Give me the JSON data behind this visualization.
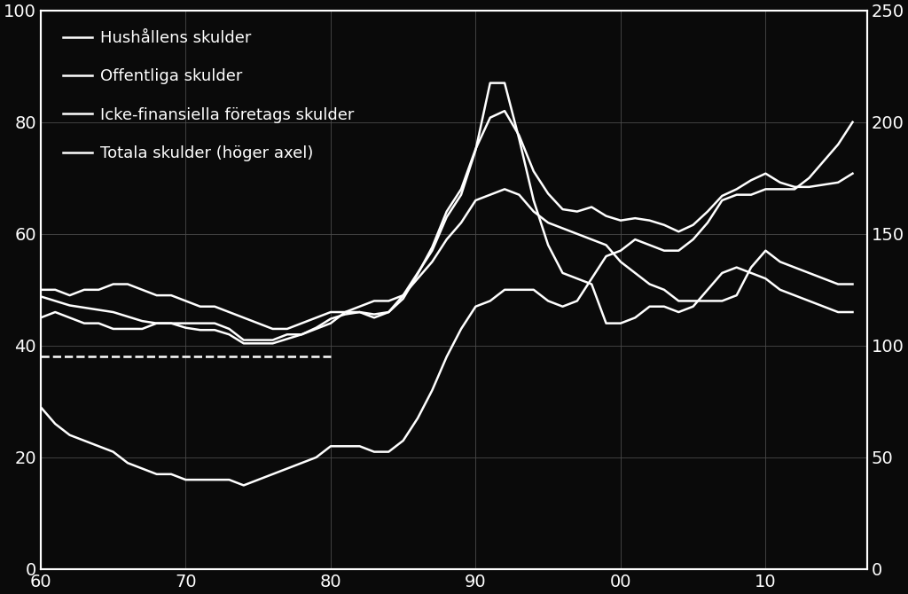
{
  "background_color": "#0a0a0a",
  "line_color": "#ffffff",
  "grid_color": "#4a4a4a",
  "text_color": "#ffffff",
  "xlim": [
    1960,
    2017
  ],
  "ylim_left": [
    0,
    100
  ],
  "ylim_right": [
    0,
    250
  ],
  "xticks": [
    1960,
    1970,
    1980,
    1990,
    2000,
    2010
  ],
  "xticklabels": [
    "60",
    "70",
    "80",
    "90",
    "00",
    "10"
  ],
  "yticks_left": [
    0,
    20,
    40,
    60,
    80,
    100
  ],
  "yticks_right": [
    0,
    50,
    100,
    150,
    200,
    250
  ],
  "legend_labels": [
    "Hushållens skulder",
    "Offentliga skulder",
    "Icke-finansiella företags skulder",
    "Totala skulder (höger axel)"
  ],
  "dashed_line_y": 38,
  "dashed_line_x_start": 1960,
  "dashed_line_x_end": 1980,
  "years": [
    1960,
    1961,
    1962,
    1963,
    1964,
    1965,
    1966,
    1967,
    1968,
    1969,
    1970,
    1971,
    1972,
    1973,
    1974,
    1975,
    1976,
    1977,
    1978,
    1979,
    1980,
    1981,
    1982,
    1983,
    1984,
    1985,
    1986,
    1987,
    1988,
    1989,
    1990,
    1991,
    1992,
    1993,
    1994,
    1995,
    1996,
    1997,
    1998,
    1999,
    2000,
    2001,
    2002,
    2003,
    2004,
    2005,
    2006,
    2007,
    2008,
    2009,
    2010,
    2011,
    2012,
    2013,
    2014,
    2015,
    2016
  ],
  "hushallens": [
    29,
    26,
    24,
    23,
    22,
    21,
    19,
    18,
    17,
    17,
    16,
    16,
    16,
    16,
    15,
    16,
    17,
    18,
    19,
    20,
    22,
    22,
    22,
    21,
    21,
    23,
    27,
    32,
    38,
    43,
    47,
    48,
    50,
    50,
    50,
    48,
    47,
    48,
    52,
    56,
    57,
    59,
    58,
    57,
    57,
    59,
    62,
    66,
    67,
    67,
    68,
    68,
    68,
    70,
    73,
    76,
    80
  ],
  "offentliga": [
    45,
    46,
    45,
    44,
    44,
    43,
    43,
    43,
    44,
    44,
    44,
    44,
    44,
    43,
    41,
    41,
    41,
    42,
    42,
    43,
    44,
    46,
    47,
    48,
    48,
    49,
    52,
    55,
    59,
    62,
    66,
    67,
    68,
    67,
    64,
    62,
    61,
    60,
    59,
    58,
    55,
    53,
    51,
    50,
    48,
    48,
    48,
    48,
    49,
    54,
    57,
    55,
    54,
    53,
    52,
    51,
    51
  ],
  "icke_finansiella": [
    50,
    50,
    49,
    50,
    50,
    51,
    51,
    50,
    49,
    49,
    48,
    47,
    47,
    46,
    45,
    44,
    43,
    43,
    44,
    45,
    46,
    46,
    46,
    45,
    46,
    49,
    53,
    57,
    63,
    67,
    75,
    87,
    87,
    77,
    66,
    58,
    53,
    52,
    51,
    44,
    44,
    45,
    47,
    47,
    46,
    47,
    50,
    53,
    54,
    53,
    52,
    50,
    49,
    48,
    47,
    46,
    46
  ],
  "totala": [
    122,
    120,
    118,
    117,
    116,
    115,
    113,
    111,
    110,
    110,
    108,
    107,
    107,
    105,
    101,
    101,
    101,
    103,
    105,
    108,
    112,
    114,
    115,
    114,
    115,
    121,
    132,
    144,
    160,
    170,
    188,
    202,
    205,
    194,
    178,
    168,
    161,
    160,
    162,
    158,
    156,
    157,
    156,
    154,
    151,
    154,
    160,
    167,
    170,
    174,
    177,
    173,
    171,
    171,
    172,
    173,
    177
  ],
  "linewidth": 1.8,
  "fontsize_ticks": 14,
  "fontsize_legend": 13
}
